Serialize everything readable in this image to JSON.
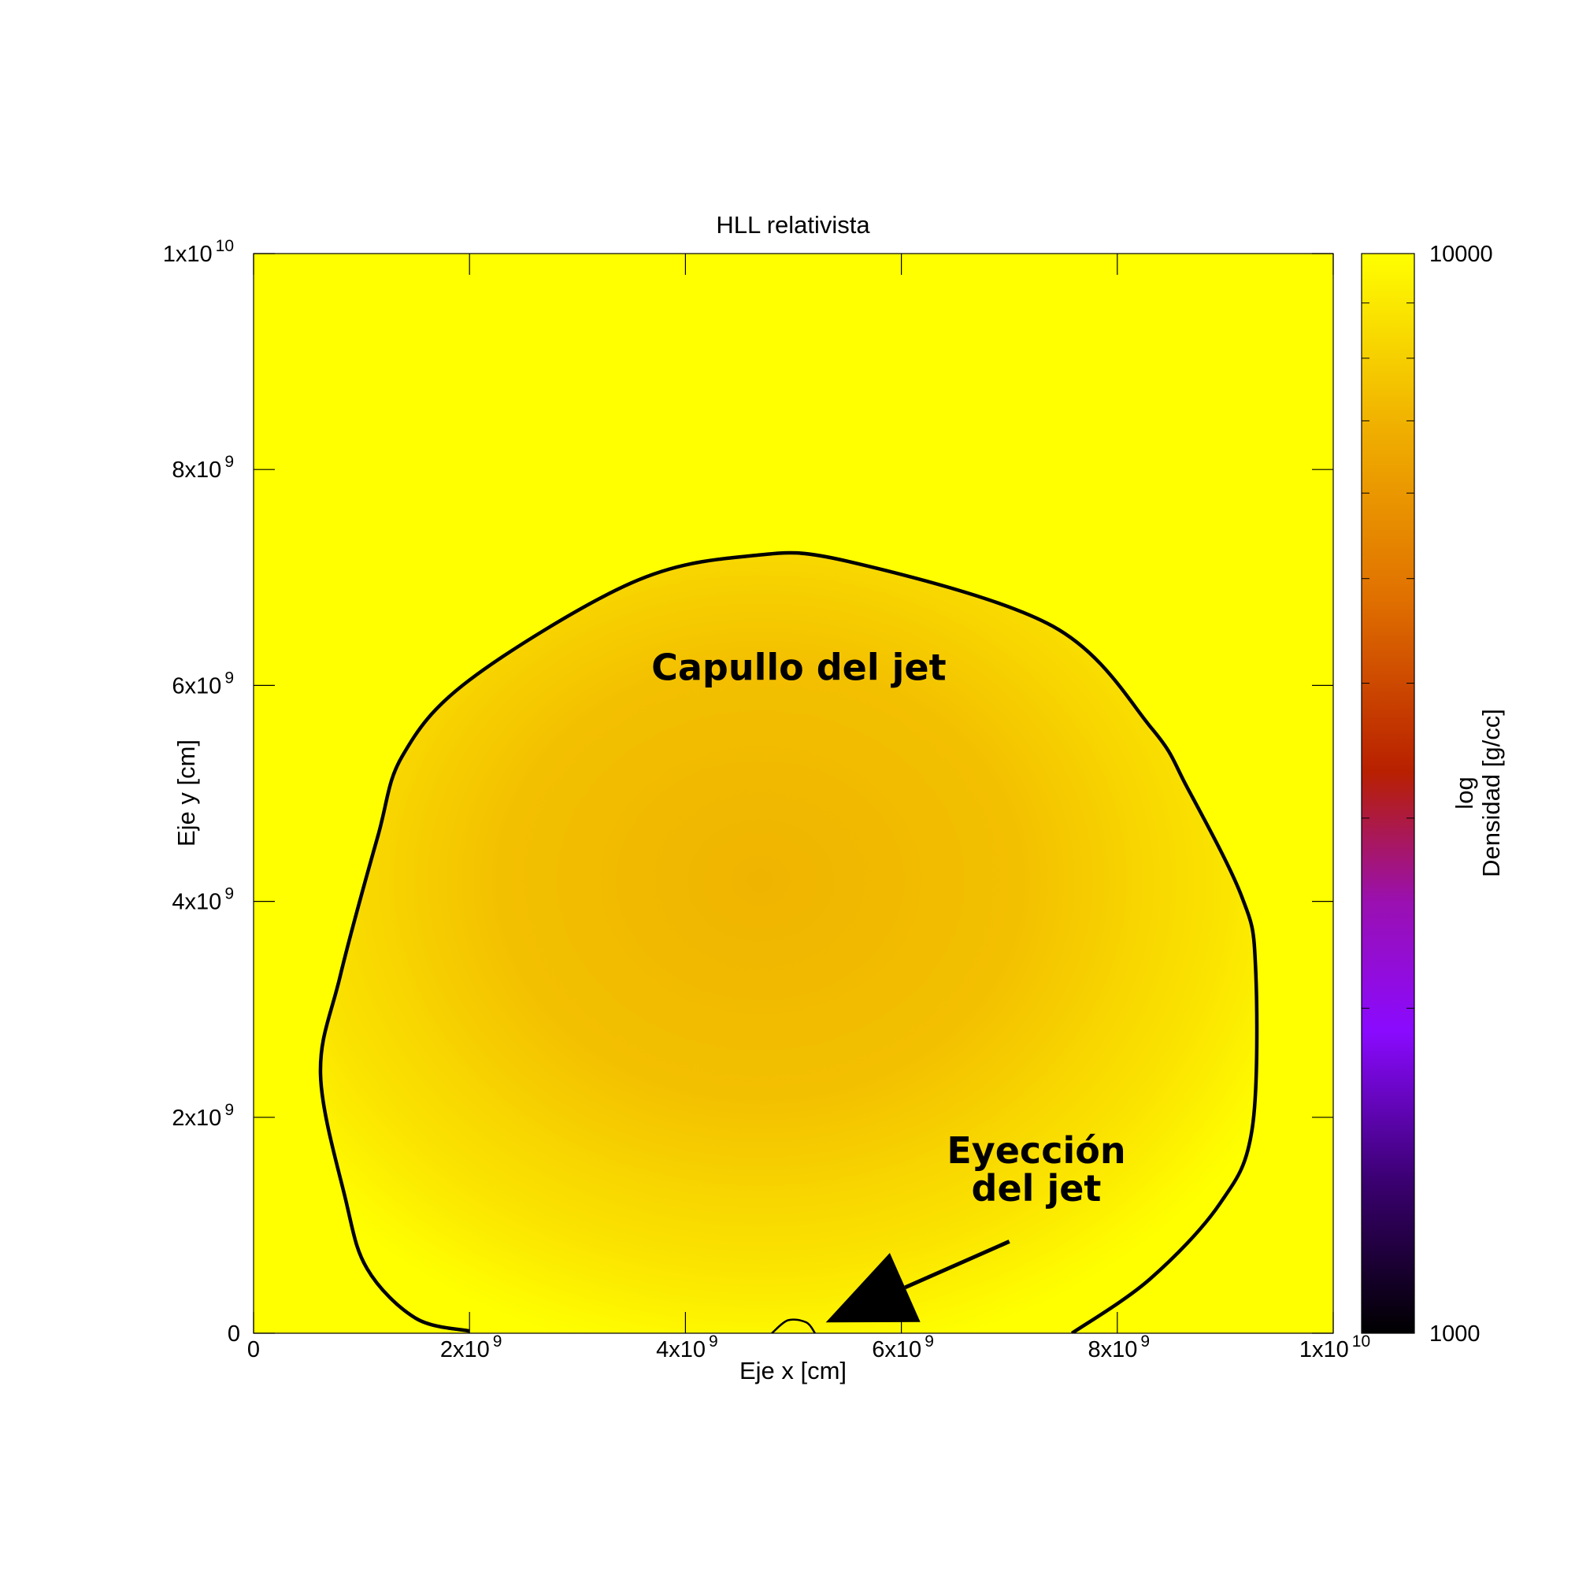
{
  "chart_data": {
    "type": "heatmap",
    "title": "HLL relativista",
    "xlabel": "Eje x [cm]",
    "ylabel": "Eje y [cm]",
    "colorbar_label_line1": "log",
    "colorbar_label_line2": "Densidad [g/cc]",
    "xlim": [
      0,
      10000000000
    ],
    "ylim": [
      0,
      10000000000
    ],
    "colorbar_range": [
      1000,
      10000
    ],
    "x_ticks": [
      {
        "value": 0,
        "base": "0",
        "exp": ""
      },
      {
        "value": 2000000000,
        "base": "2x10",
        "exp": "9"
      },
      {
        "value": 4000000000,
        "base": "4x10",
        "exp": "9"
      },
      {
        "value": 6000000000,
        "base": "6x10",
        "exp": "9"
      },
      {
        "value": 8000000000,
        "base": "8x10",
        "exp": "9"
      },
      {
        "value": 10000000000,
        "base": "1x10",
        "exp": "10"
      }
    ],
    "y_ticks": [
      {
        "value": 0,
        "base": "0",
        "exp": ""
      },
      {
        "value": 2000000000,
        "base": "2x10",
        "exp": "9"
      },
      {
        "value": 4000000000,
        "base": "4x10",
        "exp": "9"
      },
      {
        "value": 6000000000,
        "base": "6x10",
        "exp": "9"
      },
      {
        "value": 8000000000,
        "base": "8x10",
        "exp": "9"
      },
      {
        "value": 10000000000,
        "base": "1x10",
        "exp": "10"
      }
    ],
    "colorbar_ticks": [
      {
        "value": 10000,
        "label": "10000"
      },
      {
        "value": 1000,
        "label": "1000"
      }
    ],
    "colormap": [
      "#000000",
      "#3a0070",
      "#8a0aff",
      "#9a10b0",
      "#b82000",
      "#e07000",
      "#f0b000",
      "#ffff00"
    ],
    "background_color": "#ffff00",
    "contour_color": "#000000",
    "cocoon_contour": [
      [
        2000000000.0,
        20000000.0
      ],
      [
        1500000000.0,
        140000000.0
      ],
      [
        1050000000.0,
        600000000.0
      ],
      [
        850000000.0,
        1250000000.0
      ],
      [
        620000000.0,
        2400000000.0
      ],
      [
        800000000.0,
        3300000000.0
      ],
      [
        1150000000.0,
        4600000000.0
      ],
      [
        1380000000.0,
        5350000000.0
      ],
      [
        2000000000.0,
        6050000000.0
      ],
      [
        3500000000.0,
        6950000000.0
      ],
      [
        4600000000.0,
        7200000000.0
      ],
      [
        5500000000.0,
        7150000000.0
      ],
      [
        7400000000.0,
        6550000000.0
      ],
      [
        8320000000.0,
        5600000000.0
      ],
      [
        8650000000.0,
        5050000000.0
      ],
      [
        9150000000.0,
        4050000000.0
      ],
      [
        9280000000.0,
        3400000000.0
      ],
      [
        9250000000.0,
        1900000000.0
      ],
      [
        8950000000.0,
        1200000000.0
      ],
      [
        8300000000.0,
        500000000.0
      ],
      [
        7580000000.0,
        0.0
      ]
    ],
    "nozzle_contour": [
      [
        4800000000.0,
        0.0
      ],
      [
        4950000000.0,
        120000000.0
      ],
      [
        5120000000.0,
        100000000.0
      ],
      [
        5200000000.0,
        0.0
      ]
    ],
    "annotations": [
      {
        "text": "Capullo del jet",
        "x": 5050000000.0,
        "y": 6050000000.0
      },
      {
        "text_line1": "Eyección",
        "text_line2": "del jet",
        "x": 7250000000.0,
        "y": 1400000000.0,
        "arrow_from": [
          7000000000.0,
          850000000.0
        ],
        "arrow_to": [
          5300000000.0,
          100000000.0
        ]
      }
    ]
  }
}
